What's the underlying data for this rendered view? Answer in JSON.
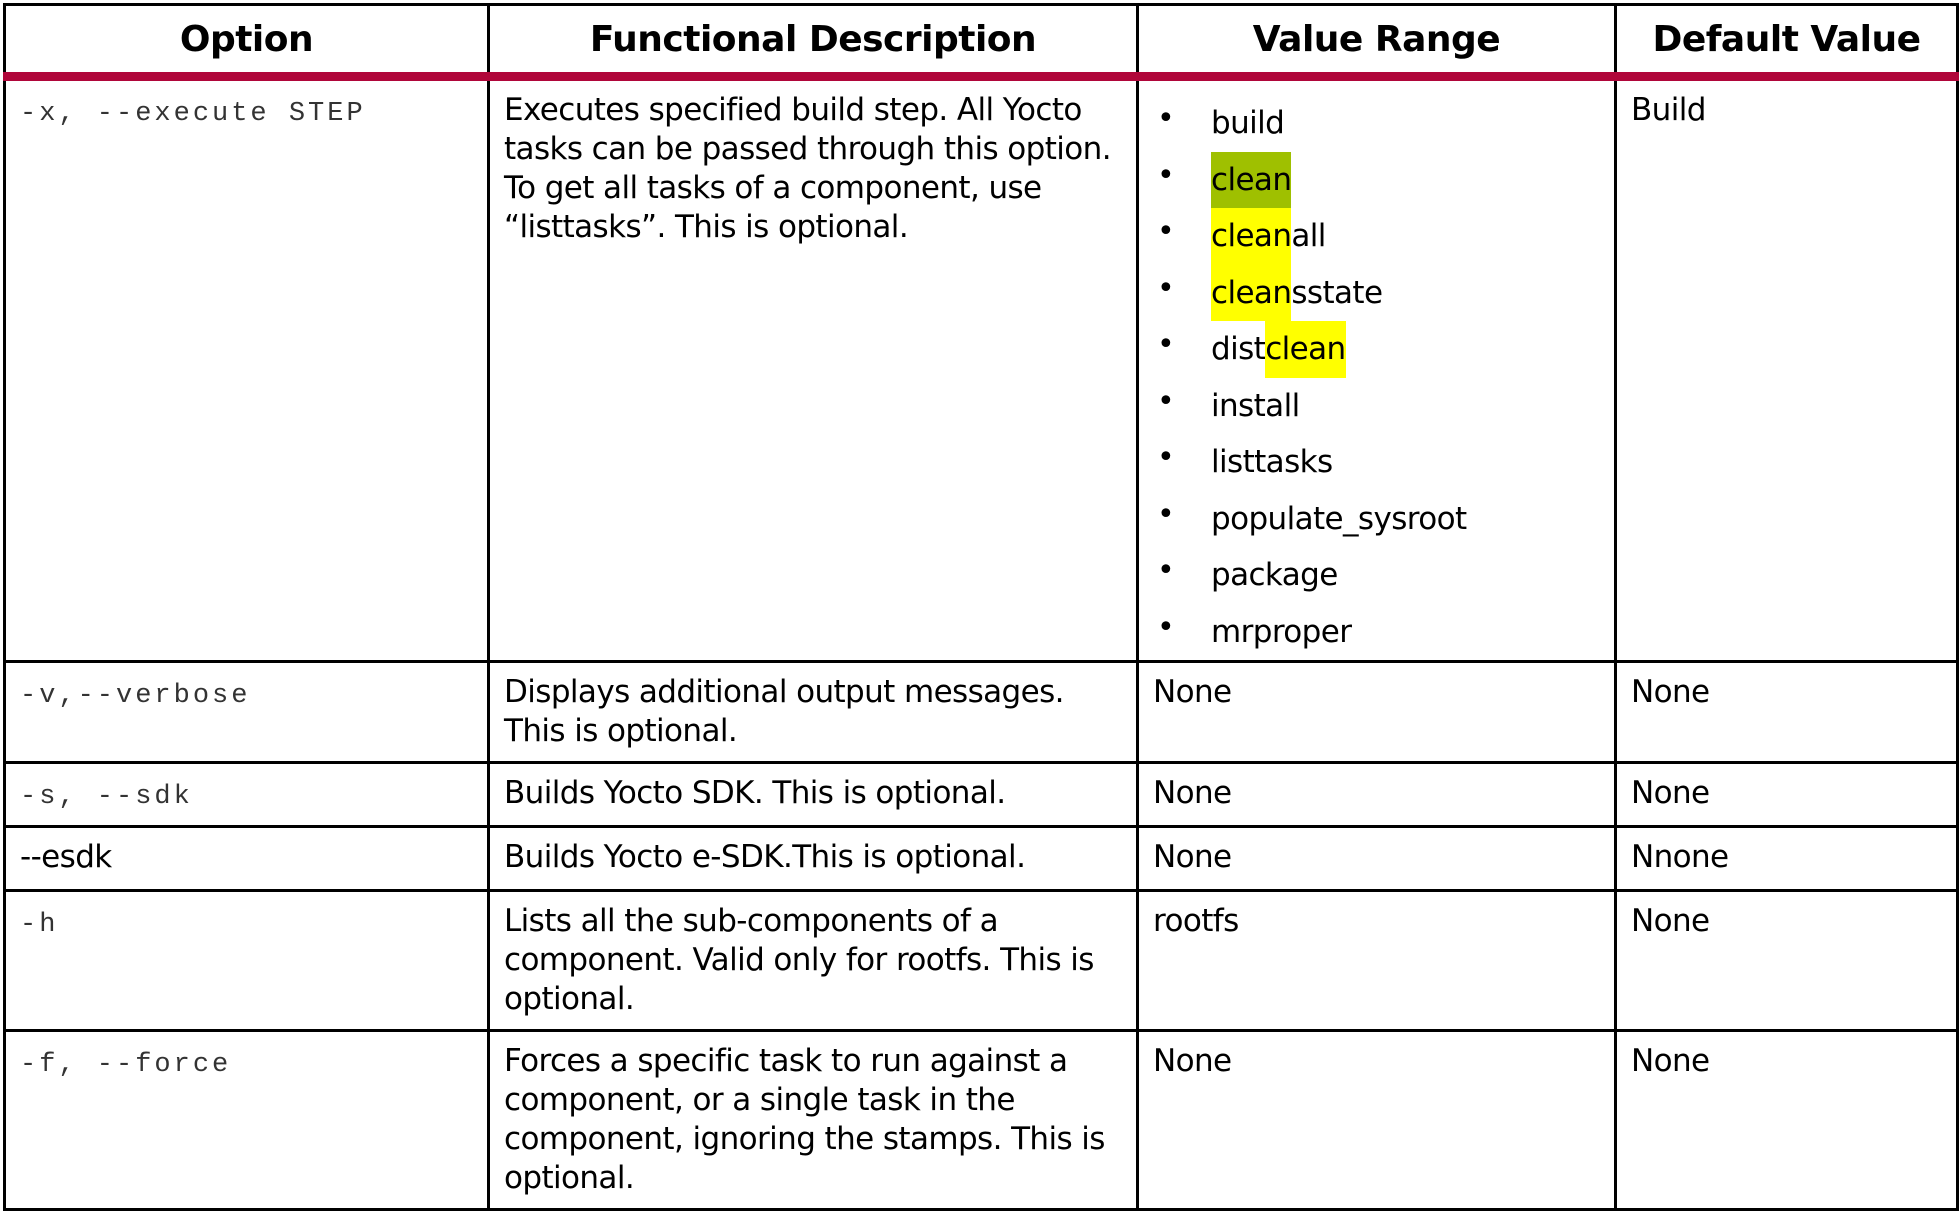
{
  "headers": [
    "Option",
    "Functional Description",
    "Value Range",
    "Default Value"
  ],
  "rows": [
    {
      "option": "-x, --execute STEP",
      "mono": true,
      "description": "Executes specified build step. All Yocto tasks can be passed through this option. To get all tasks of a component, use “listtasks”. This is optional.",
      "value_range_list": [
        [
          {
            "text": "build",
            "hl": ""
          }
        ],
        [
          {
            "text": "clean",
            "hl": "green"
          }
        ],
        [
          {
            "text": "clean",
            "hl": "yellow"
          },
          {
            "text": "all",
            "hl": ""
          }
        ],
        [
          {
            "text": "clean",
            "hl": "yellow"
          },
          {
            "text": "sstate",
            "hl": ""
          }
        ],
        [
          {
            "text": "dist",
            "hl": ""
          },
          {
            "text": "clean",
            "hl": "yellow"
          }
        ],
        [
          {
            "text": "install",
            "hl": ""
          }
        ],
        [
          {
            "text": "listtasks",
            "hl": ""
          }
        ],
        [
          {
            "text": "populate_sysroot",
            "hl": ""
          }
        ],
        [
          {
            "text": "package",
            "hl": ""
          }
        ],
        [
          {
            "text": "mrproper",
            "hl": ""
          }
        ]
      ],
      "default": "Build"
    },
    {
      "option": "-v,--verbose",
      "mono": true,
      "description": "Displays additional output messages. This is optional.",
      "value_range": "None",
      "default": "None"
    },
    {
      "option": "-s, --sdk",
      "mono": true,
      "description": "Builds Yocto SDK. This is optional.",
      "value_range": "None",
      "default": "None"
    },
    {
      "option": "--esdk",
      "mono": false,
      "description": "Builds Yocto e-SDK.This is optional.",
      "value_range": "None",
      "default": "Nnone"
    },
    {
      "option": "-h",
      "mono": true,
      "description": "Lists all the sub-components of a component. Valid only for rootfs. This is optional.",
      "value_range": "rootfs",
      "default": "None"
    },
    {
      "option": "-f, --force",
      "mono": true,
      "description": "Forces a specific task to run against a component, or a single task in the component, ignoring the stamps. This is optional.",
      "value_range": "None",
      "default": "None"
    }
  ],
  "colors": {
    "header_rule": "#b0063a",
    "highlight_green": "#9fc000",
    "highlight_yellow": "#ffff00"
  }
}
